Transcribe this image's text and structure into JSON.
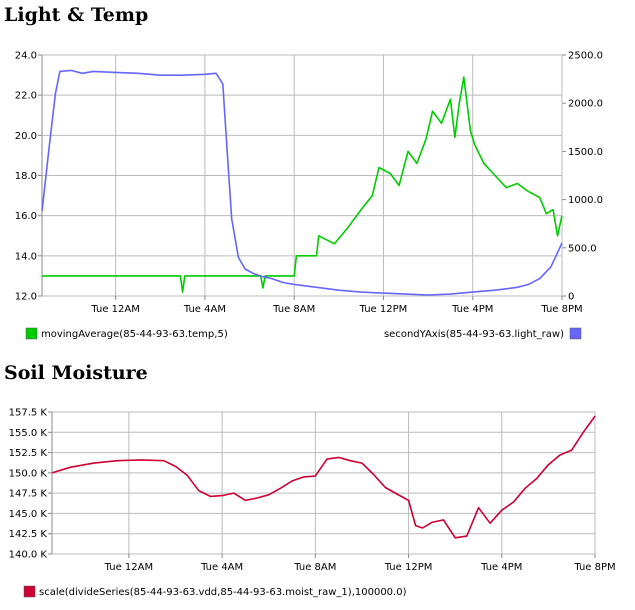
{
  "sections": {
    "light_temp_title": "Light & Temp",
    "soil_title": "Soil Moisture"
  },
  "chart_data": [
    {
      "type": "line",
      "title": "Light & Temp",
      "x_tick_labels": [
        "Tue 12AM",
        "Tue  4AM",
        "Tue  8AM",
        "Tue 12PM",
        "Tue  4PM",
        "Tue  8PM"
      ],
      "x_range_hours": [
        -3.3,
        20.0
      ],
      "ylim_left": [
        12.0,
        24.0
      ],
      "left_tick_labels": [
        "24.0",
        "22.0",
        "20.0",
        "18.0",
        "16.0",
        "14.0",
        "12.0"
      ],
      "ylim_right": [
        0,
        2500
      ],
      "right_tick_labels": [
        "2500.0",
        "2000.0",
        "1500.0",
        "1000.0",
        "500.0",
        "0"
      ],
      "grid": true,
      "legend_position": "bottom",
      "series": [
        {
          "name": "movingAverage(85-44-93-63.temp,5)",
          "axis": "left",
          "color": "#00cc00",
          "x": [
            -3.3,
            2.9,
            3.0,
            3.1,
            5.0,
            6.5,
            6.6,
            6.7,
            7.0,
            8.0,
            8.1,
            9.0,
            9.1,
            9.8,
            10.4,
            11.0,
            11.5,
            11.8,
            12.3,
            12.7,
            13.1,
            13.5,
            13.9,
            14.2,
            14.6,
            15.0,
            15.2,
            15.4,
            15.6,
            15.9,
            16.1,
            16.5,
            17.0,
            17.5,
            18.0,
            18.5,
            19.0,
            19.3,
            19.6,
            19.8,
            20.0
          ],
          "y": [
            13.0,
            13.0,
            12.2,
            13.0,
            13.0,
            13.0,
            12.4,
            13.0,
            13.0,
            13.0,
            14.0,
            14.0,
            15.0,
            14.6,
            15.4,
            16.3,
            17.0,
            18.4,
            18.1,
            17.5,
            19.2,
            18.6,
            19.8,
            21.2,
            20.6,
            21.8,
            19.9,
            21.6,
            22.9,
            20.2,
            19.5,
            18.6,
            18.0,
            17.4,
            17.6,
            17.2,
            16.9,
            16.1,
            16.3,
            15.0,
            16.0
          ]
        },
        {
          "name": "secondYAxis(85-44-93-63.light_raw)",
          "axis": "right",
          "color": "#6666ff",
          "x": [
            -3.3,
            -3.0,
            -2.7,
            -2.5,
            -2.0,
            -1.5,
            -1.0,
            0.0,
            1.0,
            2.0,
            3.0,
            4.0,
            4.5,
            4.8,
            5.0,
            5.2,
            5.5,
            5.8,
            6.2,
            6.6,
            7.0,
            7.5,
            8.0,
            9.0,
            10.0,
            11.0,
            12.0,
            13.0,
            14.0,
            15.0,
            16.0,
            17.0,
            18.0,
            18.5,
            19.0,
            19.5,
            20.0
          ],
          "y": [
            880,
            1500,
            2100,
            2330,
            2340,
            2310,
            2330,
            2320,
            2310,
            2290,
            2290,
            2300,
            2310,
            2200,
            1500,
            800,
            400,
            280,
            230,
            200,
            180,
            140,
            120,
            90,
            60,
            40,
            30,
            20,
            10,
            20,
            40,
            60,
            90,
            120,
            180,
            300,
            550
          ]
        }
      ]
    },
    {
      "type": "line",
      "title": "Soil Moisture",
      "x_tick_labels": [
        "Tue 12AM",
        "Tue  4AM",
        "Tue  8AM",
        "Tue 12PM",
        "Tue  4PM",
        "Tue  8PM"
      ],
      "x_range_hours": [
        -3.3,
        20.0
      ],
      "ylim": [
        140000,
        157500
      ],
      "y_tick_labels": [
        "157.5 K",
        "155.0 K",
        "152.5 K",
        "150.0 K",
        "147.5 K",
        "145.0 K",
        "142.5 K",
        "140.0 K"
      ],
      "grid": true,
      "legend_position": "bottom",
      "series": [
        {
          "name": "scale(divideSeries(85-44-93-63.vdd,85-44-93-63.moist_raw_1),100000.0)",
          "color": "#cc0033",
          "x": [
            -3.3,
            -2.5,
            -1.5,
            -0.5,
            0.5,
            1.5,
            2.0,
            2.5,
            3.0,
            3.5,
            4.0,
            4.5,
            5.0,
            5.5,
            6.0,
            6.5,
            7.0,
            7.5,
            8.0,
            8.5,
            9.0,
            9.5,
            10.0,
            10.5,
            11.0,
            11.5,
            12.0,
            12.3,
            12.6,
            13.0,
            13.5,
            14.0,
            14.5,
            15.0,
            15.5,
            16.0,
            16.5,
            17.0,
            17.5,
            18.0,
            18.5,
            19.0,
            19.5,
            20.0
          ],
          "y": [
            150000,
            150700,
            151200,
            151500,
            151600,
            151500,
            150800,
            149700,
            147800,
            147100,
            147200,
            147500,
            146600,
            146900,
            147300,
            148100,
            149000,
            149500,
            149600,
            151700,
            151900,
            151500,
            151200,
            149800,
            148200,
            147400,
            146600,
            143500,
            143200,
            143900,
            144200,
            142000,
            142200,
            145700,
            143800,
            145400,
            146400,
            148100,
            149300,
            151000,
            152200,
            152800,
            155000,
            157000
          ]
        }
      ]
    }
  ]
}
